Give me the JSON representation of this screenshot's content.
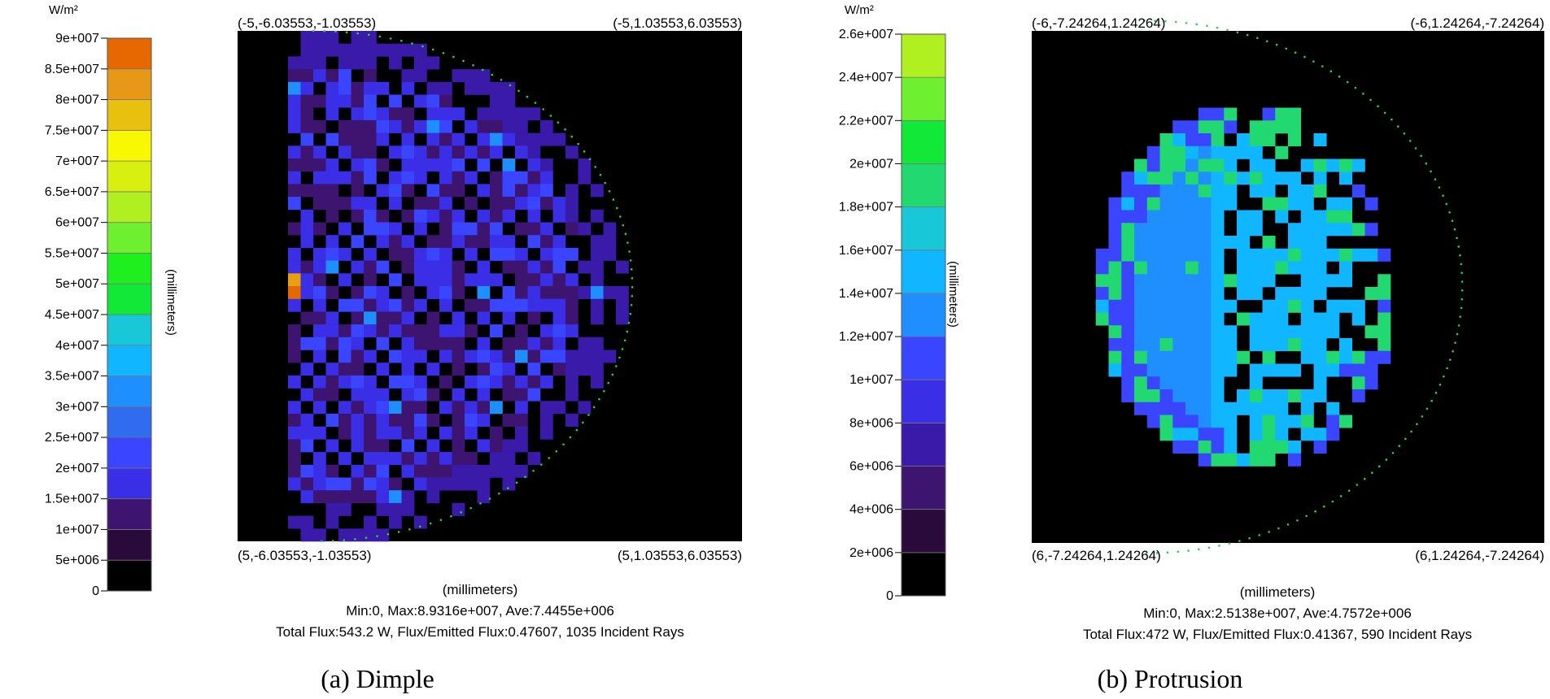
{
  "panels": [
    {
      "caption": "(a) Dimple",
      "colorbar": {
        "unit": "W/m²",
        "axis_label": "(millimeters)",
        "ticks": [
          "0",
          "5e+006",
          "1e+007",
          "1.5e+007",
          "2e+007",
          "2.5e+007",
          "3e+007",
          "3.5e+007",
          "4e+007",
          "4.5e+007",
          "5e+007",
          "5.5e+007",
          "6e+007",
          "6.5e+007",
          "7e+007",
          "7.5e+007",
          "8e+007",
          "8.5e+007",
          "9e+007"
        ],
        "colors": [
          "#000000",
          "#2a0a3a",
          "#3d1470",
          "#3a1aa8",
          "#3a2ee6",
          "#3a45ff",
          "#2f6cf0",
          "#1f8fff",
          "#10b6ff",
          "#18c8d8",
          "#22d870",
          "#12e838",
          "#1ef020",
          "#6ef030",
          "#b0f020",
          "#d8f010",
          "#f8f800",
          "#e8d800",
          "#e8c010",
          "#e89818",
          "#e86800"
        ]
      },
      "corners": {
        "top_left": "(-5,-6.03553,-1.03553)",
        "top_right": "(-5,1.03553,6.03553)",
        "bottom_left": "(5,-6.03553,-1.03553)",
        "bottom_right": "(5,1.03553,6.03553)"
      },
      "xlabel": "(millimeters)",
      "stats_line": "Min:0, Max:8.9316e+007, Ave:7.4455e+006",
      "flux_line": "Total Flux:543.2 W, Flux/Emitted Flux:0.47607, 1035 Incident Rays"
    },
    {
      "caption": "(b) Protrusion",
      "colorbar": {
        "unit": "W/m²",
        "axis_label": "(millimeters)",
        "ticks": [
          "0",
          "2e+006",
          "4e+006",
          "6e+006",
          "8e+006",
          "1e+007",
          "1.2e+007",
          "1.4e+007",
          "1.6e+007",
          "1.8e+007",
          "2e+007",
          "2.2e+007",
          "2.4e+007",
          "2.6e+007"
        ],
        "colors": [
          "#000000",
          "#2a0a3a",
          "#3d1470",
          "#3a1aa8",
          "#3a2ee6",
          "#3a45ff",
          "#2f6cf0",
          "#1f8fff",
          "#10b6ff",
          "#18c8d8",
          "#22d870",
          "#12e838",
          "#6ef030",
          "#b0f020"
        ]
      },
      "corners": {
        "top_left": "(-6,-7.24264,1.24264)",
        "top_right": "(-6,1.24264,-7.24264)",
        "bottom_left": "(6,-7.24264,1.24264)",
        "bottom_right": "(6,1.24264,-7.24264)"
      },
      "xlabel": "(millimeters)",
      "stats_line": "Min:0, Max:2.5138e+007, Ave:4.7572e+006",
      "flux_line": "Total Flux:472 W, Flux/Emitted Flux:0.41367, 590 Incident Rays"
    }
  ],
  "chart_data": [
    {
      "type": "heatmap",
      "title": "",
      "colorbar_unit": "W/m²",
      "colorbar_range": [
        0,
        90000000
      ],
      "colorbar_step": 5000000,
      "min": 0,
      "max": 89316000,
      "average": 7445500,
      "total_flux_W": 543.2,
      "flux_ratio": 0.47607,
      "incident_rays": 1035,
      "grid_size": 40,
      "region": "left-half-disc",
      "dominant_level_W_m2": 10000000,
      "hotspot_level_W_m2": 50000000
    },
    {
      "type": "heatmap",
      "title": "",
      "colorbar_unit": "W/m²",
      "colorbar_range": [
        0,
        26000000
      ],
      "colorbar_step": 2000000,
      "min": 0,
      "max": 25138000,
      "average": 4757200,
      "total_flux_W": 472,
      "flux_ratio": 0.41367,
      "incident_rays": 590,
      "grid_size": 40,
      "region": "left-ellipse",
      "dominant_level_W_m2": 12000000
    }
  ]
}
